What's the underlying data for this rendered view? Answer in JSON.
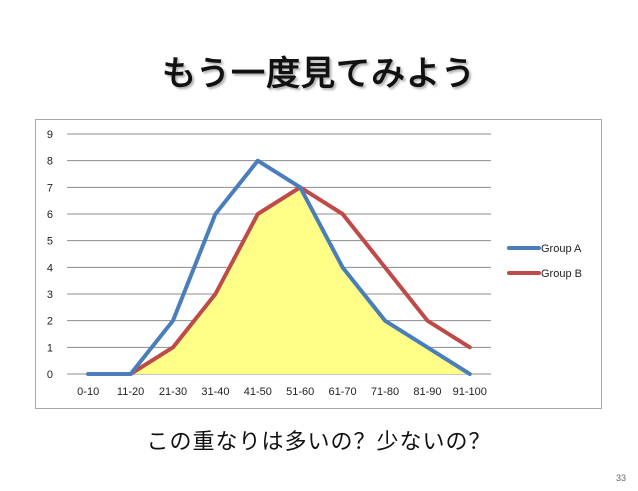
{
  "slide": {
    "title": "もう一度見てみよう",
    "caption": "この重なりは多いの？少ないの？",
    "page_number": "33"
  },
  "colors": {
    "group_a": "#4a7ebb",
    "group_b": "#be4b48",
    "overlap_fill": "#ffff88",
    "gridline": "#8c8c8c"
  },
  "chart_data": {
    "type": "line",
    "title": "",
    "xlabel": "",
    "ylabel": "",
    "categories": [
      "0-10",
      "11-20",
      "21-30",
      "31-40",
      "41-50",
      "51-60",
      "61-70",
      "71-80",
      "81-90",
      "91-100"
    ],
    "y_ticks": [
      "0",
      "1",
      "2",
      "3",
      "4",
      "5",
      "6",
      "7",
      "8",
      "9"
    ],
    "ylim": [
      0,
      9
    ],
    "grid": true,
    "legend_position": "right",
    "series": [
      {
        "name": "Group A",
        "color": "#4a7ebb",
        "values": [
          0,
          0,
          2,
          6,
          8,
          7,
          4,
          2,
          1,
          0
        ]
      },
      {
        "name": "Group B",
        "color": "#be4b48",
        "values": [
          0,
          0,
          1,
          3,
          6,
          7,
          6,
          4,
          2,
          1
        ]
      }
    ],
    "overlap_area": {
      "fill": "#ffff88",
      "values": [
        0,
        0,
        1,
        3,
        6,
        7,
        4,
        2,
        1,
        0
      ]
    }
  }
}
